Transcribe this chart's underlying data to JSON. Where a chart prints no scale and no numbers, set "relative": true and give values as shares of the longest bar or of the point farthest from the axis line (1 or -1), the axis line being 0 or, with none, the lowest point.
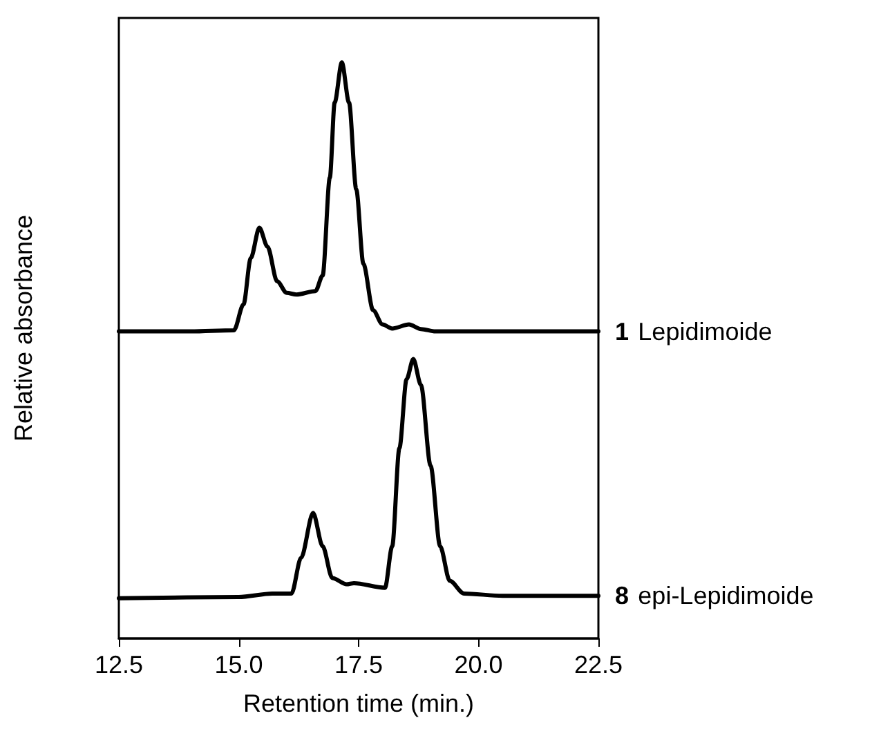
{
  "chart_data": {
    "type": "line",
    "relative": true,
    "xlabel": "Retention time (min.)",
    "ylabel": "Relative absorbance",
    "xlim": [
      12.5,
      22.5
    ],
    "xticks": [
      12.5,
      {
        "value": 15,
        "label": "15.0"
      },
      17.5,
      {
        "value": 20,
        "label": "20.0"
      },
      22.5
    ],
    "marker": "none",
    "line_style": "solid",
    "grid": false,
    "legend": false,
    "series": [
      {
        "name": "1 Lepidimoide",
        "color": "#000000",
        "x": [
          12.5,
          14.0,
          14.9,
          15.1,
          15.25,
          15.43,
          15.6,
          15.8,
          16.0,
          16.2,
          16.6,
          16.75,
          16.9,
          17.0,
          17.15,
          17.3,
          17.45,
          17.6,
          17.8,
          18.0,
          18.2,
          18.55,
          18.8,
          19.1,
          22.5
        ],
        "values": [
          0.533,
          0.533,
          0.535,
          0.58,
          0.66,
          0.713,
          0.68,
          0.62,
          0.6,
          0.597,
          0.603,
          0.63,
          0.8,
          0.93,
          1.0,
          0.93,
          0.78,
          0.65,
          0.57,
          0.545,
          0.538,
          0.545,
          0.537,
          0.533,
          0.533
        ]
      },
      {
        "name": "8 epi-Lepidimoide",
        "color": "#000000",
        "x": [
          12.5,
          15.0,
          15.7,
          16.1,
          16.3,
          16.55,
          16.75,
          16.95,
          17.25,
          17.4,
          18.05,
          18.2,
          18.35,
          18.5,
          18.64,
          18.8,
          19.0,
          19.2,
          19.4,
          19.7,
          20.5,
          22.5
        ],
        "values": [
          0.07,
          0.072,
          0.078,
          0.078,
          0.14,
          0.218,
          0.16,
          0.105,
          0.094,
          0.096,
          0.088,
          0.16,
          0.33,
          0.45,
          0.485,
          0.44,
          0.3,
          0.16,
          0.1,
          0.078,
          0.074,
          0.074
        ]
      }
    ]
  }
}
